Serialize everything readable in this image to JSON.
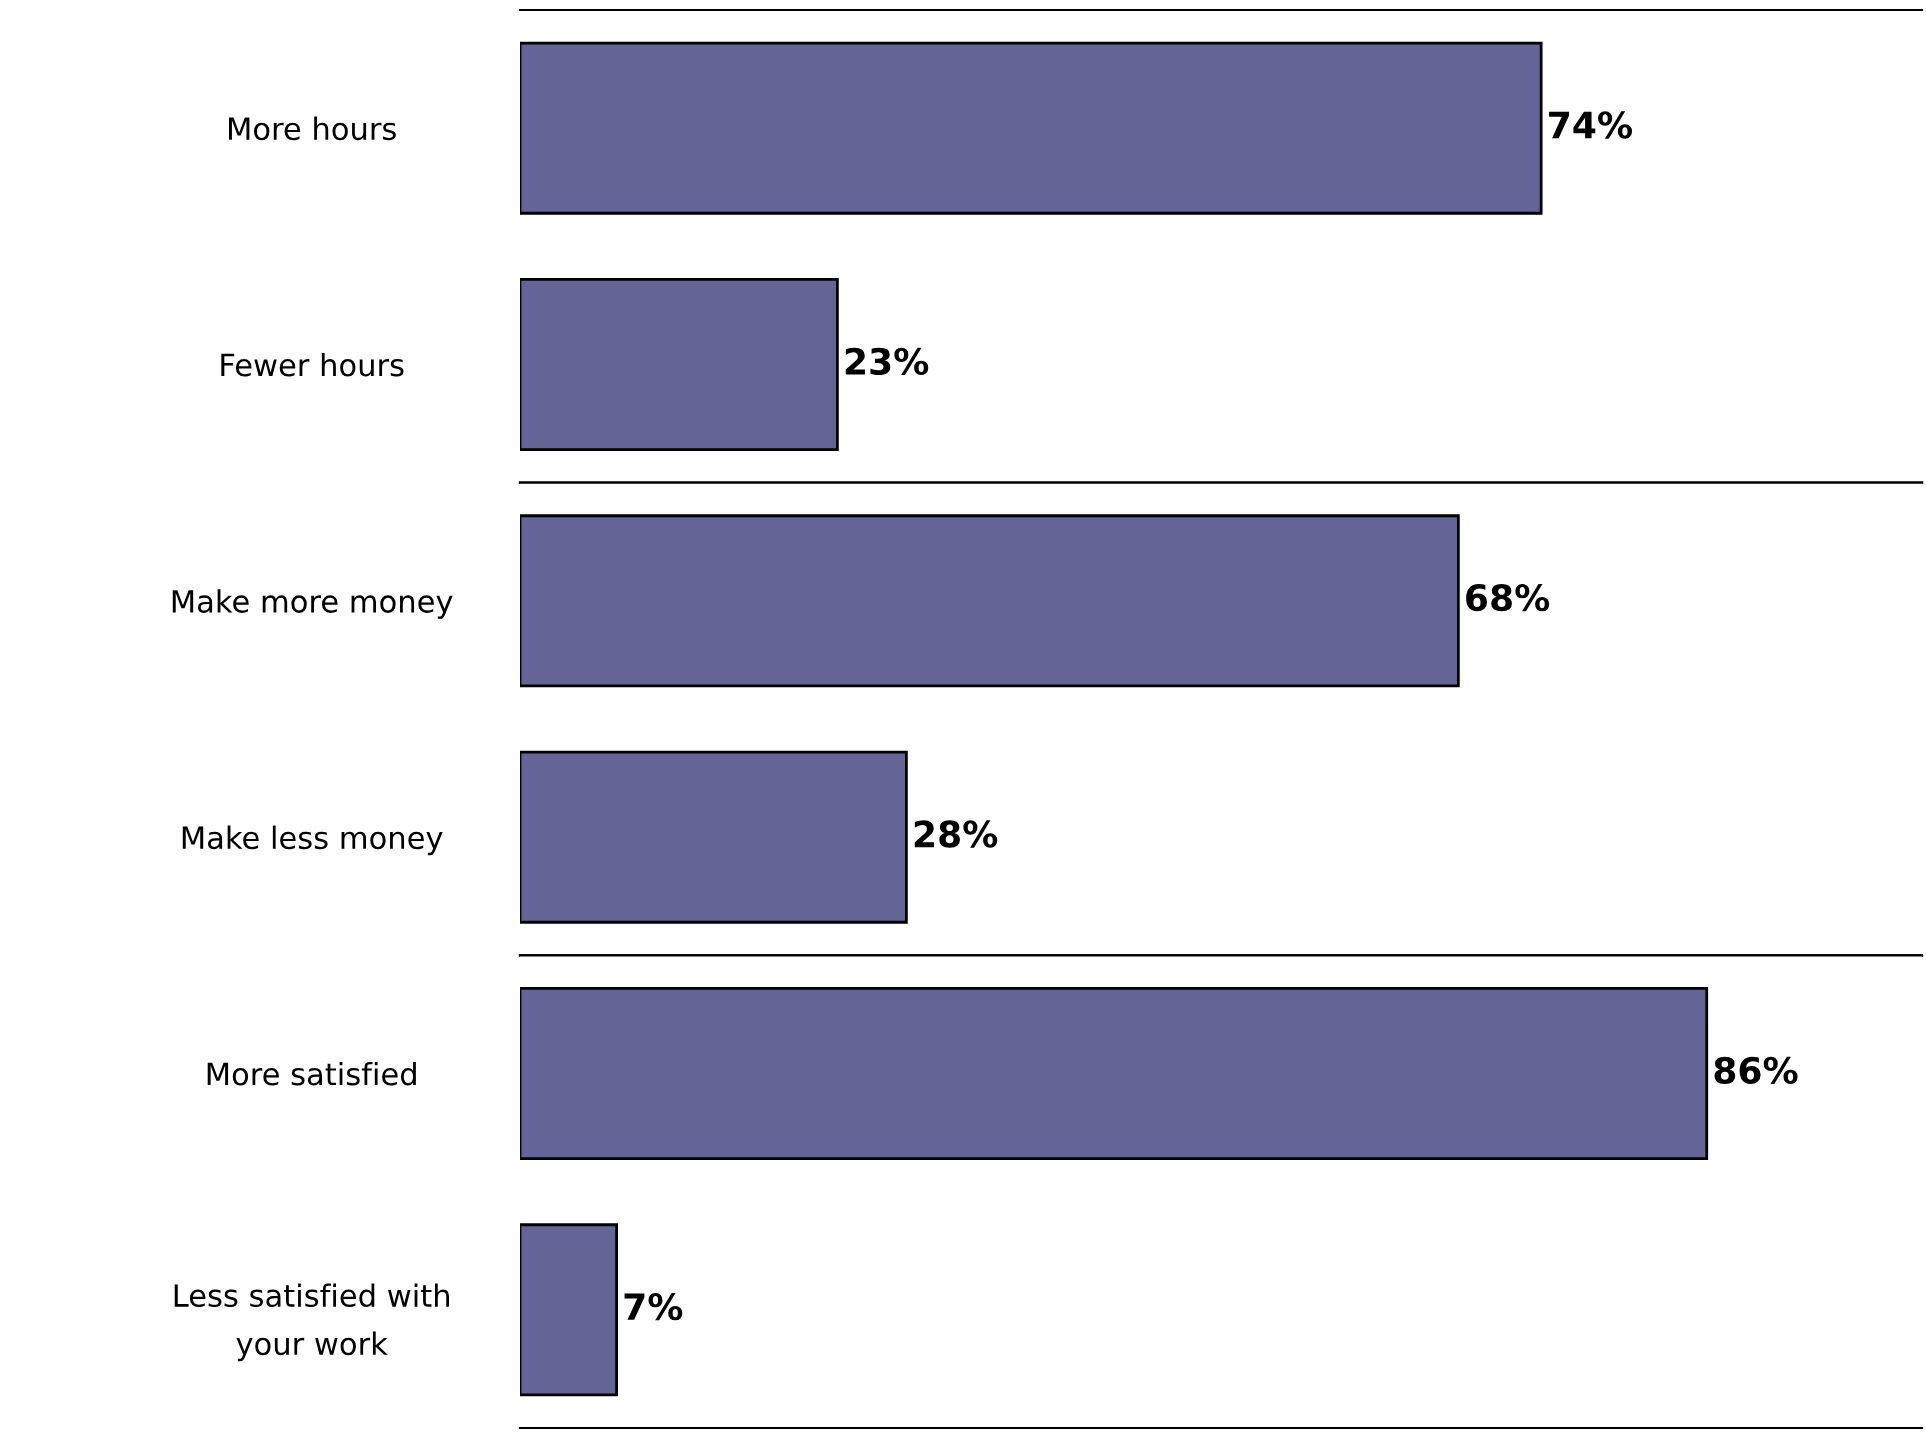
{
  "chart_data": [
    {
      "type": "bar",
      "orientation": "horizontal",
      "categories": [
        "More hours",
        "Fewer hours"
      ],
      "values": [
        74,
        23
      ],
      "value_labels": [
        "74%",
        "23%"
      ],
      "color": "#646496",
      "grid": false,
      "legend": false,
      "tick_labels": "y"
    },
    {
      "type": "bar",
      "orientation": "horizontal",
      "categories": [
        "Make more money",
        "Make less money"
      ],
      "values": [
        68,
        28
      ],
      "value_labels": [
        "68%",
        "28%"
      ],
      "color": "#646496",
      "grid": false,
      "legend": false,
      "tick_labels": "y"
    },
    {
      "type": "bar",
      "orientation": "horizontal",
      "categories": [
        "More satisfied",
        "Less satisfied with\nyour work"
      ],
      "values": [
        86,
        7
      ],
      "value_labels": [
        "86%",
        "7%"
      ],
      "color": "#646496",
      "grid": false,
      "legend": false,
      "tick_labels": "y"
    }
  ]
}
